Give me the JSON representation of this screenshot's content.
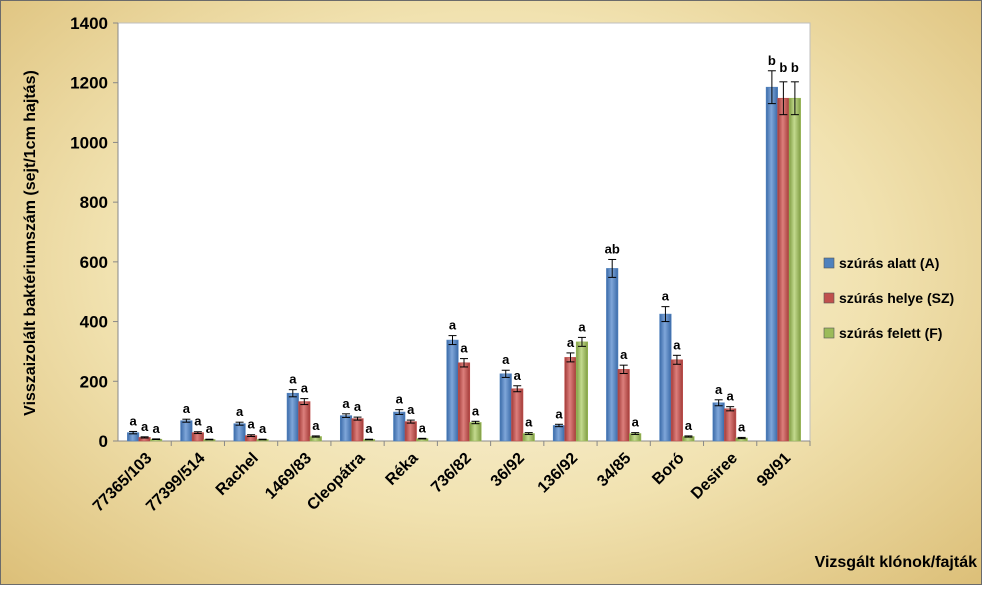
{
  "chart_data": {
    "type": "bar",
    "title": "",
    "xlabel": "Vizsgált klónok/fajták",
    "ylabel": "Visszaizolált baktériumszám (sejt/1cm hajtás)",
    "ylim": [
      0,
      1400
    ],
    "yticks": [
      0,
      200,
      400,
      600,
      800,
      1000,
      1200,
      1400
    ],
    "grid": false,
    "legend_position": "right",
    "categories": [
      "77365/103",
      "77399/514",
      "Rachel",
      "1469/83",
      "Cleopátra",
      "Réka",
      "736/82",
      "36/92",
      "136/92",
      "34/85",
      "Boró",
      "Desiree",
      "98/91"
    ],
    "series": [
      {
        "name": "szúrás alatt (A)",
        "color": "#4f81bd",
        "values": [
          28,
          68,
          58,
          160,
          85,
          97,
          338,
          225,
          52,
          578,
          425,
          128,
          1185
        ],
        "errors": [
          4,
          5,
          5,
          12,
          6,
          8,
          15,
          12,
          4,
          30,
          25,
          10,
          55
        ],
        "labels": [
          "a",
          "a",
          "a",
          "a",
          "a",
          "a",
          "a",
          "a",
          "a",
          "ab",
          "a",
          "a",
          "b"
        ]
      },
      {
        "name": "szúrás helye (SZ)",
        "color": "#c0504d",
        "values": [
          12,
          28,
          18,
          132,
          75,
          65,
          262,
          175,
          280,
          240,
          272,
          108,
          1148
        ],
        "errors": [
          2,
          3,
          3,
          10,
          5,
          5,
          14,
          10,
          15,
          14,
          15,
          7,
          55
        ],
        "labels": [
          "a",
          "a",
          "a",
          "a",
          "a",
          "a",
          "a",
          "a",
          "a",
          "a",
          "a",
          "a",
          "b"
        ]
      },
      {
        "name": "szúrás felett (F)",
        "color": "#9bbb59",
        "values": [
          6,
          5,
          5,
          15,
          5,
          8,
          62,
          25,
          332,
          25,
          15,
          10,
          1148
        ],
        "errors": [
          1,
          1,
          1,
          2,
          1,
          1,
          4,
          3,
          15,
          3,
          2,
          2,
          55
        ],
        "labels": [
          "a",
          "a",
          "a",
          "a",
          "a",
          "a",
          "a",
          "a",
          "a",
          "a",
          "a",
          "a",
          "b"
        ]
      }
    ]
  }
}
